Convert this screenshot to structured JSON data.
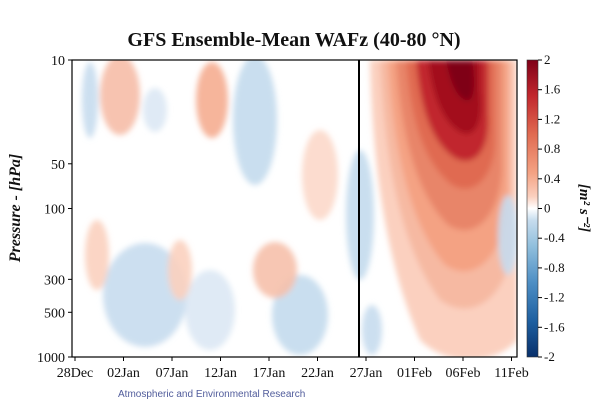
{
  "chart_data": {
    "type": "heatmap",
    "title": "GFS Ensemble-Mean WAFz (40-80 °N)",
    "ylabel": "Pressure - [hPa]",
    "colorbar_label": "[m² s⁻²]",
    "x_ticks": [
      "28Dec",
      "02Jan",
      "07Jan",
      "12Jan",
      "17Jan",
      "22Jan",
      "27Jan",
      "01Feb",
      "06Feb",
      "11Feb"
    ],
    "y_ticks": [
      "10",
      "50",
      "100",
      "300",
      "500",
      "1000"
    ],
    "y_scale": "log",
    "ylim": [
      1000,
      10
    ],
    "forecast_start": "27Jan",
    "colorbar_ticks": [
      "2",
      "1.6",
      "1.2",
      "0.8",
      "0.4",
      "0",
      "-0.4",
      "-0.8",
      "-1.2",
      "-1.6",
      "-2"
    ],
    "colorbar_range": [
      -2,
      2
    ],
    "colormap": [
      "#08306b",
      "#1e5fa0",
      "#4d8ec4",
      "#8fbedc",
      "#c6dcee",
      "#ffffff",
      "#fbd0bf",
      "#f4a283",
      "#e06b51",
      "#c1272d",
      "#7f0018"
    ],
    "watermark": "Atmospheric and Environmental Research"
  }
}
